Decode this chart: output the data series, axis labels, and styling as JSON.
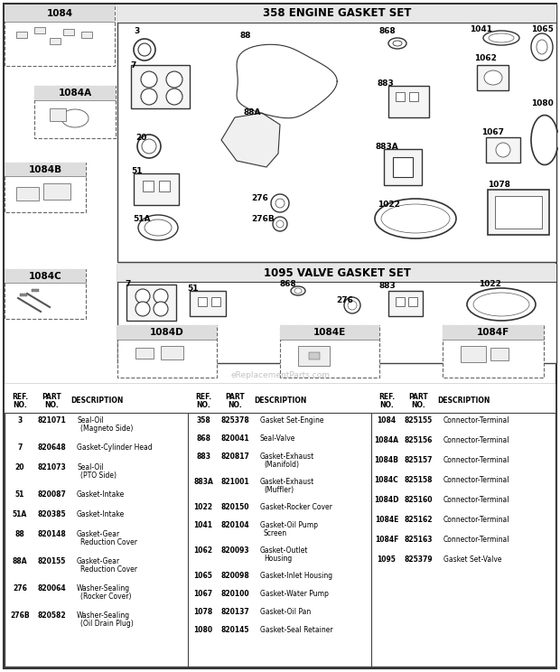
{
  "bg_color": "#ffffff",
  "engine_gasket_title": "358 ENGINE GASKET SET",
  "valve_gasket_title": "1095 VALVE GASKET SET",
  "watermark": "eReplacementParts.com",
  "parts_col1": [
    [
      "3",
      "821071",
      "Seal-Oil",
      "(Magneto Side)"
    ],
    [
      "7",
      "820648",
      "Gasket-Cylinder Head",
      ""
    ],
    [
      "20",
      "821073",
      "Seal-Oil",
      "(PTO Side)"
    ],
    [
      "51",
      "820087",
      "Gasket-Intake",
      ""
    ],
    [
      "51A",
      "820385",
      "Gasket-Intake",
      ""
    ],
    [
      "88",
      "820148",
      "Gasket-Gear",
      "Reduction Cover"
    ],
    [
      "88A",
      "820155",
      "Gasket-Gear",
      "Reduction Cover"
    ],
    [
      "276",
      "820064",
      "Washer-Sealing",
      "(Rocker Cover)"
    ],
    [
      "276B",
      "820582",
      "Washer-Sealing",
      "(Oil Drain Plug)"
    ]
  ],
  "parts_col2": [
    [
      "358",
      "825378",
      "Gasket Set-Engine",
      ""
    ],
    [
      "868",
      "820041",
      "Seal-Valve",
      ""
    ],
    [
      "883",
      "820817",
      "Gasket-Exhaust",
      "(Manifold)"
    ],
    [
      "883A",
      "821001",
      "Gasket-Exhaust",
      "(Muffler)"
    ],
    [
      "1022",
      "820150",
      "Gasket-Rocker Cover",
      ""
    ],
    [
      "1041",
      "820104",
      "Gasket-Oil Pump",
      "Screen"
    ],
    [
      "1062",
      "820093",
      "Gasket-Outlet",
      "Housing"
    ],
    [
      "1065",
      "820098",
      "Gasket-Inlet Housing",
      ""
    ],
    [
      "1067",
      "820100",
      "Gasket-Water Pump",
      ""
    ],
    [
      "1078",
      "820137",
      "Gasket-Oil Pan",
      ""
    ],
    [
      "1080",
      "820145",
      "Gasket-Seal Retainer",
      ""
    ]
  ],
  "parts_col3": [
    [
      "1084",
      "825155",
      "Connector-Terminal",
      ""
    ],
    [
      "1084A",
      "825156",
      "Connector-Terminal",
      ""
    ],
    [
      "1084B",
      "825157",
      "Connector-Terminal",
      ""
    ],
    [
      "1084C",
      "825158",
      "Connector-Terminal",
      ""
    ],
    [
      "1084D",
      "825160",
      "Connector-Terminal",
      ""
    ],
    [
      "1084E",
      "825162",
      "Connector-Terminal",
      ""
    ],
    [
      "1084F",
      "825163",
      "Connector-Terminal",
      ""
    ],
    [
      "1095",
      "825379",
      "Gasket Set-Valve",
      ""
    ]
  ]
}
